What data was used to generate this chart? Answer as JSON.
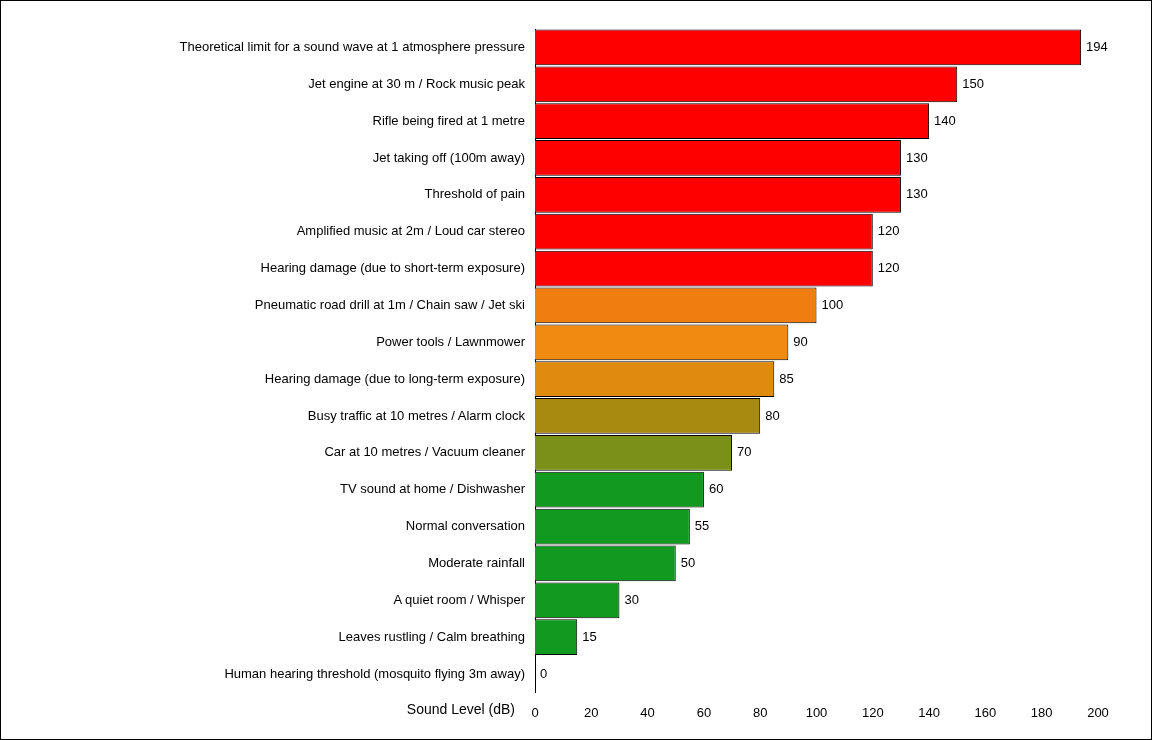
{
  "chart_data": {
    "type": "bar",
    "orientation": "horizontal",
    "xlabel": "Sound Level (dB)",
    "categories": [
      "Theoretical limit for a sound wave at 1 atmosphere pressure",
      "Jet engine at 30 m / Rock music peak",
      "Rifle being fired at 1 metre",
      "Jet taking off (100m away)",
      "Threshold of pain",
      "Amplified music at 2m / Loud car stereo",
      "Hearing damage (due to short-term exposure)",
      "Pneumatic road drill at 1m / Chain saw / Jet ski",
      "Power tools / Lawnmower",
      "Hearing damage (due to long-term exposure)",
      "Busy traffic at 10 metres / Alarm clock",
      "Car at 10 metres / Vacuum cleaner",
      "TV sound at home / Dishwasher",
      "Normal conversation",
      "Moderate rainfall",
      "A quiet room / Whisper",
      "Leaves rustling / Calm breathing",
      "Human hearing threshold (mosquito flying 3m away)"
    ],
    "values": [
      194,
      150,
      140,
      130,
      130,
      120,
      120,
      100,
      90,
      85,
      80,
      70,
      60,
      55,
      50,
      30,
      15,
      0
    ],
    "colors": [
      "#ff0000",
      "#ff0000",
      "#ff0000",
      "#ff0000",
      "#ff0000",
      "#ff0000",
      "#ff0000",
      "#f07d10",
      "#f08a10",
      "#e08a10",
      "#a88a10",
      "#7a9018",
      "#109a20",
      "#109a20",
      "#109a20",
      "#109a20",
      "#109a20",
      "#109a20"
    ],
    "xlim": [
      0,
      200
    ],
    "xticks": [
      0,
      20,
      40,
      60,
      80,
      100,
      120,
      140,
      160,
      180,
      200
    ],
    "data_labels": true,
    "grid": false,
    "legend": false
  }
}
